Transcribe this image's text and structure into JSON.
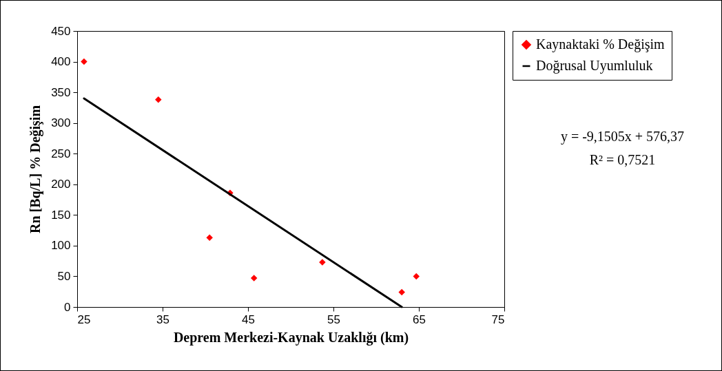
{
  "chart_data": {
    "type": "scatter",
    "xlabel": "Deprem Merkezi-Kaynak Uzaklığı (km)",
    "ylabel": "Rn [Bq/L] % Değişim",
    "xlim": [
      25,
      75
    ],
    "xticks": [
      25,
      35,
      45,
      55,
      65,
      75
    ],
    "ylim": [
      0,
      450
    ],
    "yticks": [
      0,
      50,
      100,
      150,
      200,
      250,
      300,
      350,
      400,
      450
    ],
    "grid": false,
    "legend": "top right",
    "series": [
      {
        "name": "Kaynaktaki % Değişim",
        "marker": "diamond",
        "color": "#ff0000",
        "x": [
          25.8,
          34.5,
          42.9,
          40.5,
          45.7,
          53.7,
          63.0,
          64.7
        ],
        "values": [
          400,
          338,
          186,
          113,
          47,
          73,
          24,
          50
        ]
      },
      {
        "name": "Doğrusal Uyumluluk",
        "type": "line",
        "marker": "none",
        "color": "#000000",
        "line_style": "solid",
        "x": [
          25.8,
          63.0
        ],
        "values": [
          340,
          0
        ]
      }
    ],
    "annotations": [
      "y = -9,1505x + 576,37",
      "R² = 0,7521"
    ]
  }
}
